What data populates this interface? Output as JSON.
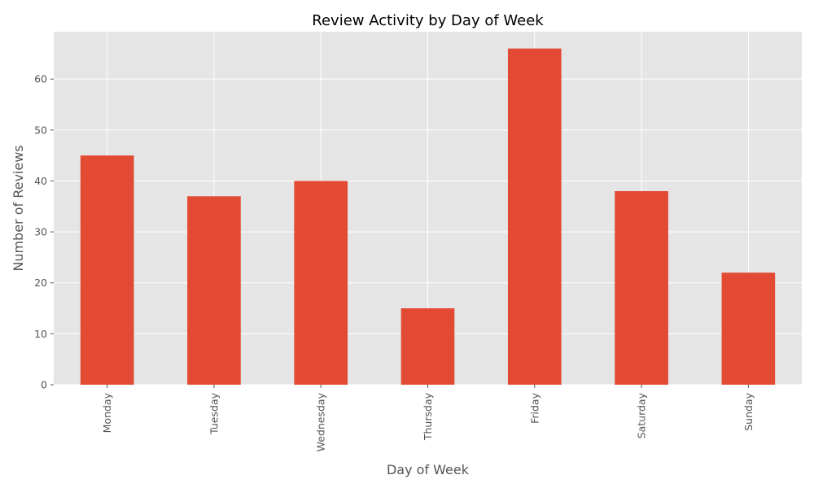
{
  "chart_data": {
    "type": "bar",
    "title": "Review Activity by Day of Week",
    "xlabel": "Day of Week",
    "ylabel": "Number of Reviews",
    "categories": [
      "Monday",
      "Tuesday",
      "Wednesday",
      "Thursday",
      "Friday",
      "Saturday",
      "Sunday"
    ],
    "values": [
      45,
      37,
      40,
      15,
      66,
      38,
      22
    ],
    "ylim": [
      0,
      69.3
    ],
    "yticks": [
      0,
      10,
      20,
      30,
      40,
      50,
      60
    ],
    "grid": true,
    "legend": "none",
    "colors": {
      "bar": "#E24A33",
      "plot_background": "#E5E5E5",
      "grid": "#FFFFFF",
      "tick_text": "#555555",
      "title_text": "#000000"
    }
  }
}
